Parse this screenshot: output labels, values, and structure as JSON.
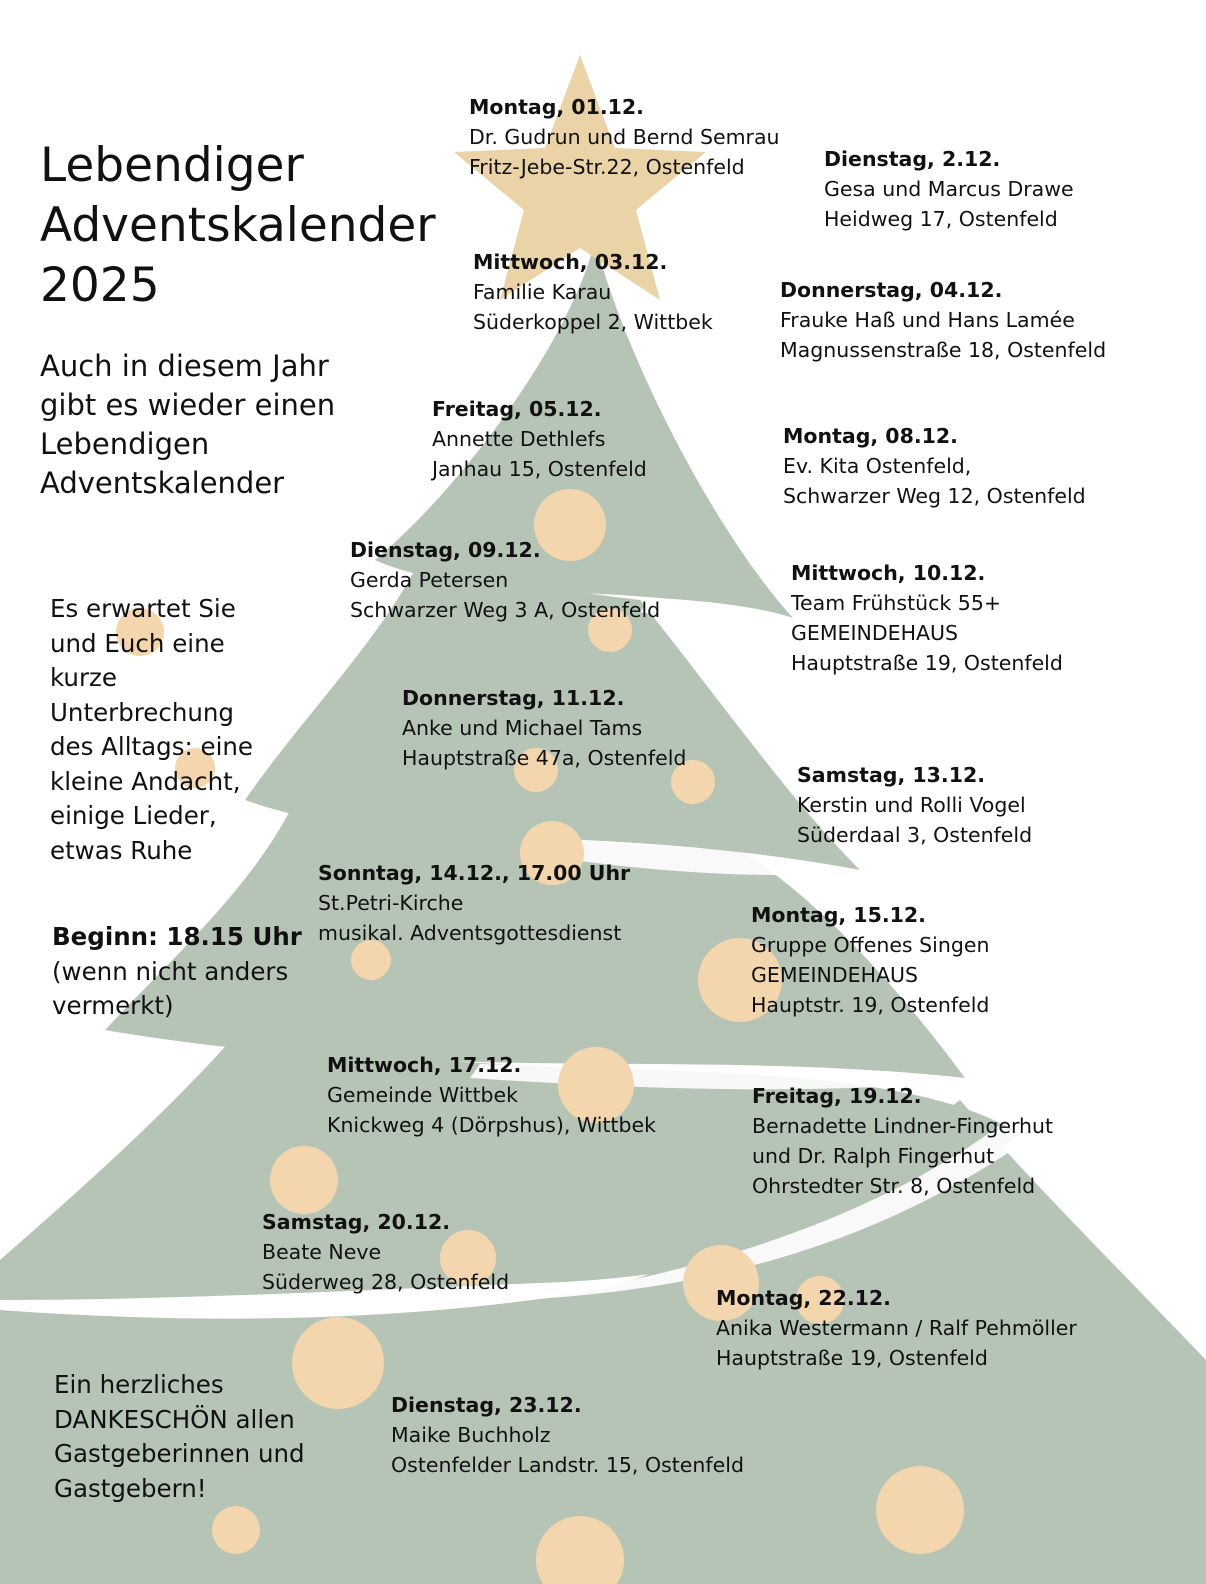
{
  "title_lines": [
    "Lebendiger",
    "Adventskalender",
    "2025"
  ],
  "intro": "Auch in diesem Jahr gibt es wieder einen Lebendigen Adventskalender",
  "description": "Es erwartet Sie und Euch eine kurze Unterbrechung des Alltags: eine kleine Andacht, einige Lieder, etwas Ruhe",
  "begin": {
    "bold": "Beginn: 18.15 Uhr",
    "note": " (wenn nicht anders vermerkt)"
  },
  "thanks": "Ein herzliches DANKESCHÖN allen Gastgeberinnen und Gastgebern!",
  "colors": {
    "tree": "#b6c4b6",
    "star": "#ead3a7",
    "ornament": "#f4d6ae",
    "text": "#111111"
  },
  "events": [
    {
      "date": "Montag, 01.12.",
      "lines": [
        "Dr. Gudrun und Bernd Semrau",
        "Fritz-Jebe-Str.22, Ostenfeld"
      ]
    },
    {
      "date": "Dienstag, 2.12.",
      "lines": [
        "Gesa und Marcus Drawe",
        "Heidweg 17, Ostenfeld"
      ]
    },
    {
      "date": "Mittwoch, 03.12.",
      "lines": [
        "Familie Karau",
        "Süderkoppel 2, Wittbek"
      ]
    },
    {
      "date": "Donnerstag, 04.12.",
      "lines": [
        "Frauke Haß und Hans Lamée",
        "Magnussenstraße 18, Ostenfeld"
      ]
    },
    {
      "date": "Freitag, 05.12.",
      "lines": [
        "Annette Dethlefs",
        "Janhau 15, Ostenfeld"
      ]
    },
    {
      "date": "Montag, 08.12.",
      "lines": [
        "Ev. Kita Ostenfeld,",
        "Schwarzer Weg 12, Ostenfeld"
      ]
    },
    {
      "date": "Dienstag, 09.12.",
      "lines": [
        "Gerda Petersen",
        "Schwarzer Weg 3 A, Ostenfeld"
      ]
    },
    {
      "date": "Mittwoch, 10.12.",
      "lines": [
        "Team Frühstück 55+",
        "GEMEINDEHAUS",
        "Hauptstraße 19, Ostenfeld"
      ]
    },
    {
      "date": "Donnerstag, 11.12.",
      "lines": [
        "Anke und Michael Tams",
        "Hauptstraße 47a, Ostenfeld"
      ]
    },
    {
      "date": "Samstag, 13.12.",
      "lines": [
        "Kerstin und Rolli Vogel",
        "Süderdaal 3, Ostenfeld"
      ]
    },
    {
      "date": "Sonntag, 14.12., 17.00 Uhr",
      "lines": [
        "St.Petri-Kirche",
        "musikal. Adventsgottesdienst"
      ]
    },
    {
      "date": "Montag, 15.12.",
      "lines": [
        "Gruppe Offenes Singen",
        "GEMEINDEHAUS",
        "Hauptstr. 19, Ostenfeld"
      ]
    },
    {
      "date": "Mittwoch, 17.12.",
      "lines": [
        "Gemeinde Wittbek",
        "Knickweg 4 (Dörpshus), Wittbek"
      ]
    },
    {
      "date": "Freitag, 19.12.",
      "lines": [
        "Bernadette Lindner-Fingerhut",
        "und Dr. Ralph Fingerhut",
        "Ohrstedter Str. 8, Ostenfeld"
      ]
    },
    {
      "date": "Samstag, 20.12.",
      "lines": [
        "Beate Neve",
        "Süderweg 28, Ostenfeld"
      ]
    },
    {
      "date": "Montag, 22.12.",
      "lines": [
        "Anika Westermann / Ralf Pehmöller",
        "Hauptstraße 19, Ostenfeld"
      ]
    },
    {
      "date": "Dienstag, 23.12.",
      "lines": [
        "Maike Buchholz",
        "Ostenfelder Landstr. 15, Ostenfeld"
      ]
    }
  ]
}
